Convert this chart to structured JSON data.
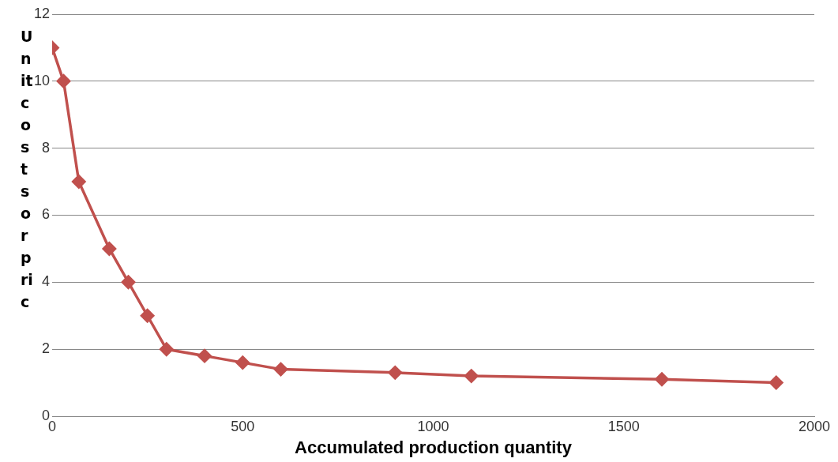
{
  "chart_data": {
    "type": "line",
    "xlabel": "Accumulated production quantity",
    "ylabel": "Unit costs or pric",
    "x": [
      0,
      30,
      70,
      150,
      200,
      250,
      300,
      400,
      500,
      600,
      900,
      1100,
      1600,
      1900
    ],
    "series": [
      {
        "color": "#c0504d",
        "values": [
          11,
          10,
          7,
          5,
          4,
          3,
          2,
          1.8,
          1.6,
          1.4,
          1.3,
          1.2,
          1.1,
          1.0
        ]
      }
    ],
    "xlim": [
      0,
      2000
    ],
    "xticks": [
      0,
      500,
      1000,
      1500,
      2000
    ],
    "ylim": [
      0,
      12
    ],
    "yticks": [
      0,
      2,
      4,
      6,
      8,
      10,
      12
    ],
    "grid": "y",
    "legend": false,
    "marker": "diamond",
    "line_style": "solid"
  }
}
